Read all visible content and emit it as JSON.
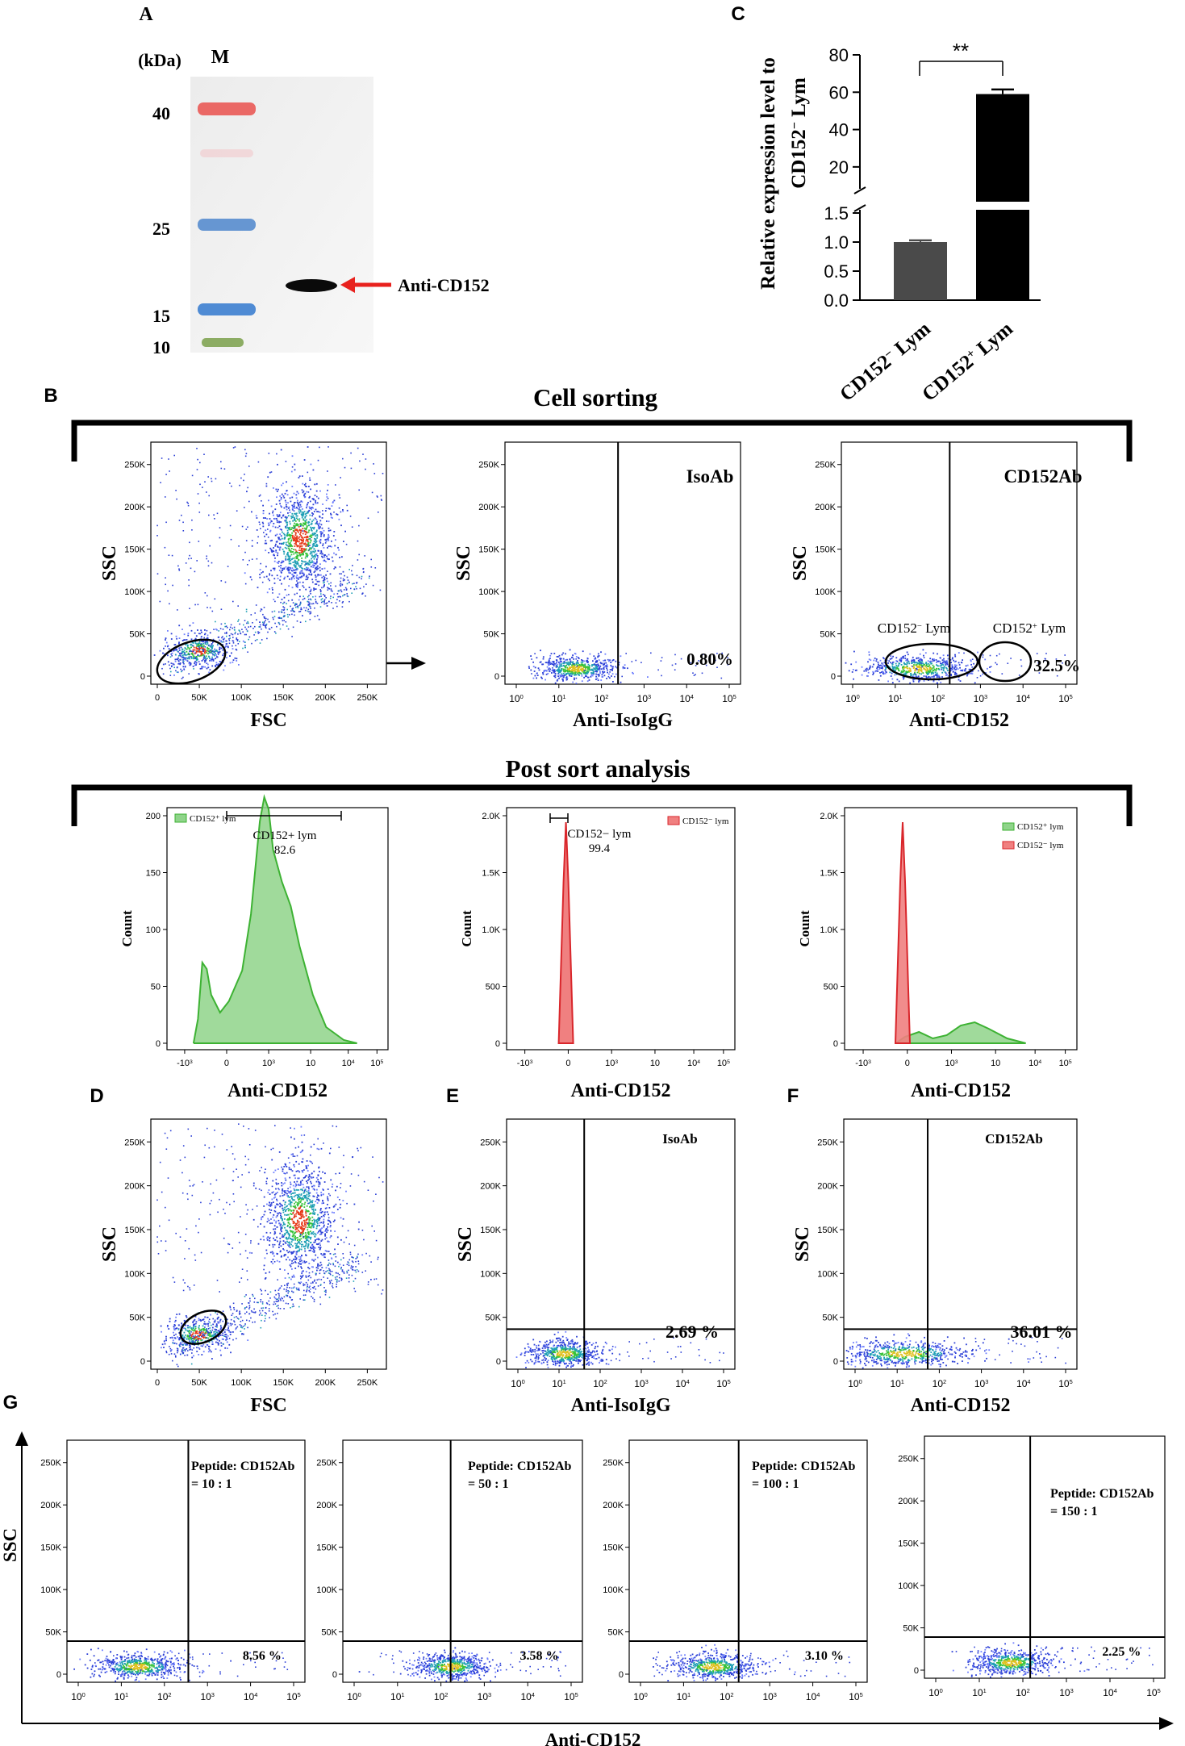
{
  "panels": {
    "A": {
      "letter": "A",
      "unit_label": "(kDa)",
      "marker_label": "M",
      "marker_sizes": [
        "40",
        "25",
        "15",
        "10"
      ],
      "band_label": "Anti-CD152",
      "colors": {
        "arrow": "#e8211d",
        "band_40": "#e8524e",
        "band_25": "#4d86cc",
        "band_15": "#3d7fd0",
        "band_10": "#7aa04a"
      }
    },
    "C": {
      "letter": "C",
      "significance": "**"
    },
    "B": {
      "letter": "B",
      "section_titles": [
        "Cell sorting",
        "Post sort analysis"
      ],
      "sorting": {
        "fsc_ssc": {
          "ylabel": "SSC",
          "xlabel": "FSC"
        },
        "iso": {
          "tag": "IsoAb",
          "percent": "0.80%",
          "ylabel": "SSC",
          "xlabel": "Anti-IsoIgG"
        },
        "cd152": {
          "tag": "CD152Ab",
          "percent": "32.5%",
          "ylabel": "SSC",
          "xlabel": "Anti-CD152",
          "gate_neg": "CD152",
          "gate_neg_sup": "−",
          "gate_pos": "CD152",
          "gate_pos_sup": "+",
          "gate_suffix": " Lym"
        }
      },
      "post_sort": {
        "pos": {
          "legend": "CD152⁺ lym",
          "gate_name": "CD152+ lym",
          "gate_value": "82.6",
          "ylabel": "Count",
          "xlabel": "Anti-CD152",
          "yticks": [
            "200",
            "150",
            "100",
            "50",
            "0"
          ]
        },
        "neg": {
          "legend": "CD152⁻ lym",
          "gate_name": "CD152− lym",
          "gate_value": "99.4",
          "ylabel": "Count",
          "xlabel": "Anti-CD152",
          "yticks": [
            "2.0K",
            "1.5K",
            "1.0K",
            "500",
            "0"
          ]
        },
        "overlay": {
          "legend_pos": "CD152⁺ lym",
          "legend_neg": "CD152⁻ lym",
          "ylabel": "Count",
          "xlabel": "Anti-CD152",
          "yticks": [
            "2.0K",
            "1.5K",
            "1.0K",
            "500",
            "0"
          ]
        },
        "hist_xticks": [
          "-10",
          "0",
          "10",
          "10",
          "10",
          "10"
        ],
        "hist_xtick_sup": [
          "3",
          "",
          "3",
          "",
          "4",
          "5"
        ]
      }
    },
    "D": {
      "letter": "D",
      "ylabel": "SSC",
      "xlabel": "FSC"
    },
    "E": {
      "letter": "E",
      "tag": "IsoAb",
      "percent": "2.69 %",
      "ylabel": "SSC",
      "xlabel": "Anti-IsoIgG"
    },
    "F": {
      "letter": "F",
      "tag": "CD152Ab",
      "percent": "36.01 %",
      "ylabel": "SSC",
      "xlabel": "Anti-CD152"
    },
    "G": {
      "letter": "G",
      "ylabel": "SSC",
      "xlabel": "Anti-CD152",
      "plots": [
        {
          "ratio_title": "Peptide: CD152Ab",
          "ratio": "=   10  :  1",
          "percent": "8.56 %"
        },
        {
          "ratio_title": "Peptide: CD152Ab",
          "ratio": "=   50  :  1",
          "percent": "3.58 %"
        },
        {
          "ratio_title": "Peptide: CD152Ab",
          "ratio": "=   100  :  1",
          "percent": "3.10 %"
        },
        {
          "ratio_title": "Peptide: CD152Ab",
          "ratio": "=  150  :  1",
          "percent": "2.25 %"
        }
      ]
    }
  },
  "scatter_axes": {
    "lin_ticks": [
      "0",
      "50K",
      "100K",
      "150K",
      "200K",
      "250K"
    ],
    "log_base": "10",
    "log_exps": [
      "0",
      "1",
      "2",
      "3",
      "4",
      "5"
    ]
  },
  "chart_data": {
    "type": "bar",
    "title": "",
    "categories": [
      "CD152⁻ Lym",
      "CD152⁺ Lym"
    ],
    "category_labels": [
      {
        "base": "CD152",
        "sup": "−",
        "rest": " Lym"
      },
      {
        "base": "CD152",
        "sup": "+",
        "rest": " Lym"
      }
    ],
    "values": [
      1.0,
      59.0
    ],
    "errors": [
      0.03,
      2.5
    ],
    "ylabel_main": "Relative expression level to",
    "ylabel_second": {
      "base": "CD152",
      "sup": "−",
      "rest": " Lym"
    },
    "xlabel": "",
    "broken_axis": true,
    "lower_range": [
      0,
      1.5
    ],
    "upper_range": [
      10,
      80
    ],
    "lower_ticks": [
      "0.0",
      "0.5",
      "1.0",
      "1.5"
    ],
    "upper_ticks": [
      "20",
      "40",
      "60",
      "80"
    ],
    "bar_colors": [
      "#4a4a4a",
      "#000000"
    ]
  }
}
